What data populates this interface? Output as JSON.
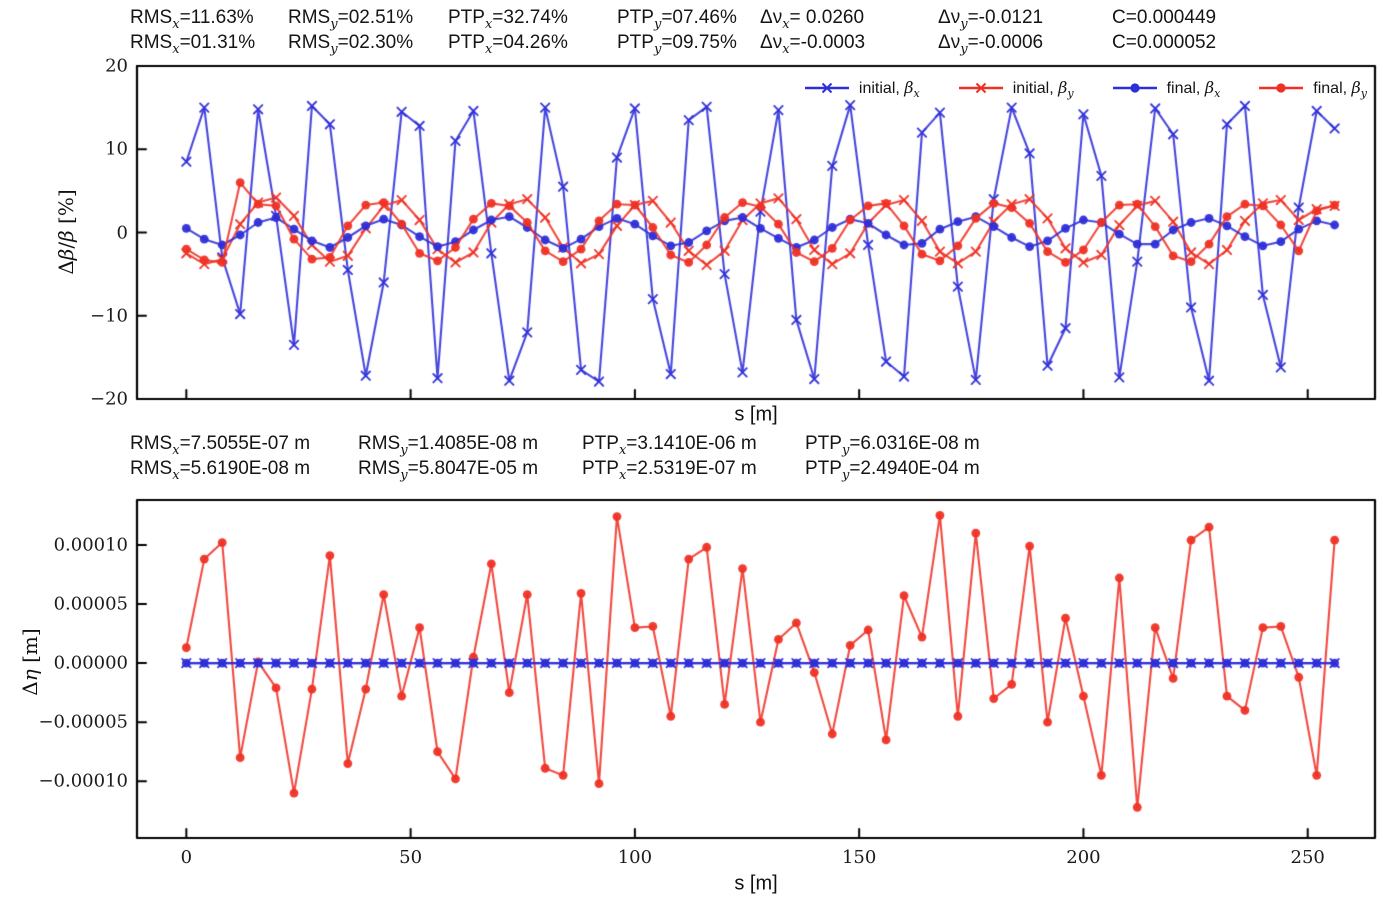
{
  "figure": {
    "colors": {
      "blue": "#2e2ed8",
      "red": "#ef3125",
      "axis": "#000000",
      "text": "#151515"
    },
    "beta_stats": {
      "rows": [
        [
          {
            "b": "RMS",
            "s": "x",
            "r": "=11.63%"
          },
          {
            "b": "RMS",
            "s": "y",
            "r": "=02.51%"
          },
          {
            "b": "PTP",
            "s": "x",
            "r": "=32.74%"
          },
          {
            "b": "PTP",
            "s": "y",
            "r": "=07.46%"
          },
          {
            "b": "Δν",
            "s": "x",
            "r": "= 0.0260"
          },
          {
            "b": "Δν",
            "s": "y",
            "r": "=-0.0121"
          },
          {
            "b": "C",
            "s": "",
            "r": "=0.000449"
          }
        ],
        [
          {
            "b": "RMS",
            "s": "x",
            "r": "=01.31%"
          },
          {
            "b": "RMS",
            "s": "y",
            "r": "=02.30%"
          },
          {
            "b": "PTP",
            "s": "x",
            "r": "=04.26%"
          },
          {
            "b": "PTP",
            "s": "y",
            "r": "=09.75%"
          },
          {
            "b": "Δν",
            "s": "x",
            "r": "=-0.0003"
          },
          {
            "b": "Δν",
            "s": "y",
            "r": "=-0.0006"
          },
          {
            "b": "C",
            "s": "",
            "r": "=0.000052"
          }
        ]
      ]
    },
    "eta_stats": {
      "rows": [
        [
          {
            "b": "RMS",
            "s": "x",
            "r": "=7.5055E-07 m"
          },
          {
            "b": "RMS",
            "s": "y",
            "r": "=1.4085E-08 m"
          },
          {
            "b": "PTP",
            "s": "x",
            "r": "=3.1410E-06 m"
          },
          {
            "b": "PTP",
            "s": "y",
            "r": "=6.0316E-08 m"
          }
        ],
        [
          {
            "b": "RMS",
            "s": "x",
            "r": "=5.6190E-08 m"
          },
          {
            "b": "RMS",
            "s": "y",
            "r": "=5.8047E-05 m"
          },
          {
            "b": "PTP",
            "s": "x",
            "r": "=2.5319E-07 m"
          },
          {
            "b": "PTP",
            "s": "y",
            "r": "=2.4940E-04 m"
          }
        ]
      ]
    }
  },
  "chart_data": [
    {
      "type": "line",
      "xlabel": "s [m]",
      "ylabel": "Δβ/β [%]",
      "ylabel_parts": [
        {
          "t": "Δ"
        },
        {
          "t": "β",
          "i": 1
        },
        {
          "t": "/"
        },
        {
          "t": "β",
          "i": 1
        },
        {
          "t": " [%]"
        }
      ],
      "xlim": [
        -11,
        265
      ],
      "ylim": [
        -20,
        20
      ],
      "xticks": [
        0,
        50,
        100,
        150,
        200,
        250
      ],
      "xtick_labels_visible": false,
      "yticks": [
        20,
        10,
        0,
        -10,
        -20
      ],
      "ytick_labels": [
        "20",
        "10",
        "0",
        "−10",
        "−20"
      ],
      "grid": false,
      "legend_position": "upper right",
      "x": [
        0,
        4,
        8,
        12,
        16,
        20,
        24,
        28,
        32,
        36,
        40,
        44,
        48,
        52,
        56,
        60,
        64,
        68,
        72,
        76,
        80,
        84,
        88,
        92,
        96,
        100,
        104,
        108,
        112,
        116,
        120,
        124,
        128,
        132,
        136,
        140,
        144,
        148,
        152,
        156,
        160,
        164,
        168,
        172,
        176,
        180,
        184,
        188,
        192,
        196,
        200,
        204,
        208,
        212,
        216,
        220,
        224,
        228,
        232,
        236,
        240,
        244,
        248,
        252,
        256
      ],
      "series": [
        {
          "name": "initial, β_x",
          "legend": {
            "pre": "initial, ",
            "sym": "β",
            "sub": "x"
          },
          "color": "blue",
          "marker": "x",
          "values": [
            8.5,
            15.0,
            -3.0,
            -9.8,
            14.8,
            2.0,
            -13.5,
            15.2,
            13.0,
            -4.5,
            -17.2,
            -6.0,
            14.5,
            12.8,
            -17.5,
            11.0,
            14.6,
            -2.5,
            -17.8,
            -12.0,
            15.0,
            5.5,
            -16.5,
            -17.9,
            9.0,
            14.9,
            -8.0,
            -17.0,
            13.5,
            15.1,
            -5.0,
            -16.8,
            2.5,
            14.7,
            -10.5,
            -17.6,
            8.0,
            15.3,
            -1.5,
            -15.5,
            -17.3,
            12.0,
            14.4,
            -6.5,
            -17.7,
            4.0,
            15.0,
            9.5,
            -16.0,
            -11.5,
            14.2,
            6.8,
            -17.4,
            -3.5,
            14.9,
            11.8,
            -9.0,
            -17.8,
            13.0,
            15.2,
            -7.5,
            -16.2,
            3.0,
            14.6,
            12.5
          ]
        },
        {
          "name": "initial, β_y",
          "legend": {
            "pre": "initial, ",
            "sym": "β",
            "sub": "y"
          },
          "color": "red",
          "marker": "x",
          "values": [
            -2.5,
            -3.8,
            -3.2,
            1.0,
            3.6,
            4.2,
            2.0,
            -1.5,
            -3.5,
            -2.8,
            0.5,
            3.2,
            3.9,
            1.5,
            -2.0,
            -3.6,
            -2.4,
            1.2,
            3.4,
            4.0,
            1.8,
            -1.8,
            -3.7,
            -2.6,
            0.8,
            3.3,
            3.8,
            1.2,
            -2.2,
            -3.9,
            -2.2,
            1.5,
            3.5,
            4.1,
            1.6,
            -2.1,
            -3.8,
            -2.5,
            1.1,
            3.3,
            3.9,
            1.4,
            -2.3,
            -3.7,
            -2.3,
            1.3,
            3.4,
            4.0,
            1.7,
            -1.9,
            -3.6,
            -2.7,
            0.9,
            3.2,
            3.8,
            1.3,
            -2.4,
            -3.8,
            -2.1,
            1.4,
            3.5,
            3.9,
            1.5,
            2.8,
            3.2
          ]
        },
        {
          "name": "final, β_x",
          "legend": {
            "pre": "final, ",
            "sym": "β",
            "sub": "x"
          },
          "color": "blue",
          "marker": "o",
          "values": [
            0.5,
            -0.8,
            -1.5,
            -0.3,
            1.2,
            1.8,
            0.4,
            -1.0,
            -1.8,
            -0.6,
            0.8,
            1.6,
            0.9,
            -0.5,
            -1.7,
            -1.1,
            0.3,
            1.5,
            1.9,
            0.6,
            -0.9,
            -1.9,
            -0.8,
            0.7,
            1.7,
            1.0,
            -0.4,
            -1.6,
            -1.2,
            0.2,
            1.4,
            1.8,
            0.5,
            -0.7,
            -1.8,
            -0.9,
            0.6,
            1.6,
            1.1,
            -0.3,
            -1.5,
            -1.3,
            0.4,
            1.3,
            1.9,
            0.7,
            -0.6,
            -1.7,
            -1.0,
            0.5,
            1.5,
            1.2,
            -0.2,
            -1.4,
            -1.4,
            0.3,
            1.2,
            1.7,
            0.8,
            -0.5,
            -1.6,
            -1.1,
            0.4,
            1.4,
            0.9
          ]
        },
        {
          "name": "final, β_y",
          "legend": {
            "pre": "final, ",
            "sym": "β",
            "sub": "y"
          },
          "color": "red",
          "marker": "o",
          "values": [
            -2.0,
            -3.3,
            -3.6,
            6.0,
            3.4,
            3.2,
            -0.8,
            -3.2,
            -3.0,
            0.8,
            3.3,
            3.6,
            1.0,
            -2.5,
            -3.4,
            -1.8,
            1.6,
            3.5,
            3.2,
            1.2,
            -2.2,
            -3.5,
            -2.0,
            1.4,
            3.4,
            3.3,
            0.6,
            -2.7,
            -3.6,
            -1.5,
            1.8,
            3.6,
            3.1,
            1.0,
            -2.4,
            -3.5,
            -1.9,
            1.5,
            3.2,
            3.5,
            0.8,
            -2.6,
            -3.4,
            -1.6,
            1.7,
            3.5,
            3.0,
            1.1,
            -2.3,
            -3.6,
            -2.1,
            1.2,
            3.3,
            3.4,
            0.7,
            -2.8,
            -3.5,
            -1.4,
            1.9,
            3.4,
            3.2,
            0.9,
            -2.2,
            2.6,
            3.3
          ]
        }
      ]
    },
    {
      "type": "line",
      "xlabel": "s [m]",
      "ylabel": "Δη [m]",
      "ylabel_parts": [
        {
          "t": "Δ"
        },
        {
          "t": "η",
          "i": 1
        },
        {
          "t": " [m]"
        }
      ],
      "xlim": [
        -11,
        265
      ],
      "ylim": [
        -0.000148,
        0.000138
      ],
      "xticks": [
        0,
        50,
        100,
        150,
        200,
        250
      ],
      "xtick_labels": [
        "0",
        "50",
        "100",
        "150",
        "200",
        "250"
      ],
      "xtick_labels_visible": true,
      "yticks": [
        0.0001,
        5e-05,
        0,
        -5e-05,
        -0.0001
      ],
      "ytick_labels": [
        "0.00010",
        "0.00005",
        "0.00000",
        "−0.00005",
        "−0.00010"
      ],
      "grid": false,
      "unit_scale": 1e-06,
      "x": [
        0,
        4,
        8,
        12,
        16,
        20,
        24,
        28,
        32,
        36,
        40,
        44,
        48,
        52,
        56,
        60,
        64,
        68,
        72,
        76,
        80,
        84,
        88,
        92,
        96,
        100,
        104,
        108,
        112,
        116,
        120,
        124,
        128,
        132,
        136,
        140,
        144,
        148,
        152,
        156,
        160,
        164,
        168,
        172,
        176,
        180,
        184,
        188,
        192,
        196,
        200,
        204,
        208,
        212,
        216,
        220,
        224,
        228,
        232,
        236,
        240,
        244,
        248,
        252,
        256
      ],
      "series": [
        {
          "name": "red circles (large Δη)",
          "color": "red",
          "marker": "o",
          "values_scaled": [
            13,
            88,
            102,
            -80,
            1,
            -21,
            -110,
            -22,
            91,
            -85,
            -22,
            58,
            -28,
            30,
            -75,
            -98,
            5,
            84,
            -25,
            58,
            -89,
            -95,
            59,
            -102,
            124,
            30,
            31,
            -45,
            88,
            98,
            -35,
            80,
            -50,
            20,
            34,
            -8,
            -60,
            15,
            28,
            -65,
            57,
            22,
            125,
            -45,
            110,
            -30,
            -18,
            99,
            -50,
            38,
            -28,
            -95,
            72,
            -122,
            30,
            -13,
            104,
            115,
            -28,
            -40,
            30,
            31,
            -12,
            -95,
            104
          ]
        },
        {
          "name": "blue × band (≈0)",
          "color": "blue",
          "marker": "x",
          "values_scaled": [
            0,
            0,
            0,
            0,
            0,
            0,
            0,
            0,
            0,
            0,
            0,
            0,
            0,
            0,
            0,
            0,
            0,
            0,
            0,
            0,
            0,
            0,
            0,
            0,
            0,
            0,
            0,
            0,
            0,
            0,
            0,
            0,
            0,
            0,
            0,
            0,
            0,
            0,
            0,
            0,
            0,
            0,
            0,
            0,
            0,
            0,
            0,
            0,
            0,
            0,
            0,
            0,
            0,
            0,
            0,
            0,
            0,
            0,
            0,
            0,
            0,
            0,
            0,
            0,
            0
          ]
        },
        {
          "name": "blue ● band (≈0)",
          "color": "blue",
          "marker": "o",
          "values_scaled": [
            0,
            0,
            0,
            0,
            0,
            0,
            0,
            0,
            0,
            0,
            0,
            0,
            0,
            0,
            0,
            0,
            0,
            0,
            0,
            0,
            0,
            0,
            0,
            0,
            0,
            0,
            0,
            0,
            0,
            0,
            0,
            0,
            0,
            0,
            0,
            0,
            0,
            0,
            0,
            0,
            0,
            0,
            0,
            0,
            0,
            0,
            0,
            0,
            0,
            0,
            0,
            0,
            0,
            0,
            0,
            0,
            0,
            0,
            0,
            0,
            0,
            0,
            0,
            0,
            0
          ]
        }
      ]
    }
  ]
}
